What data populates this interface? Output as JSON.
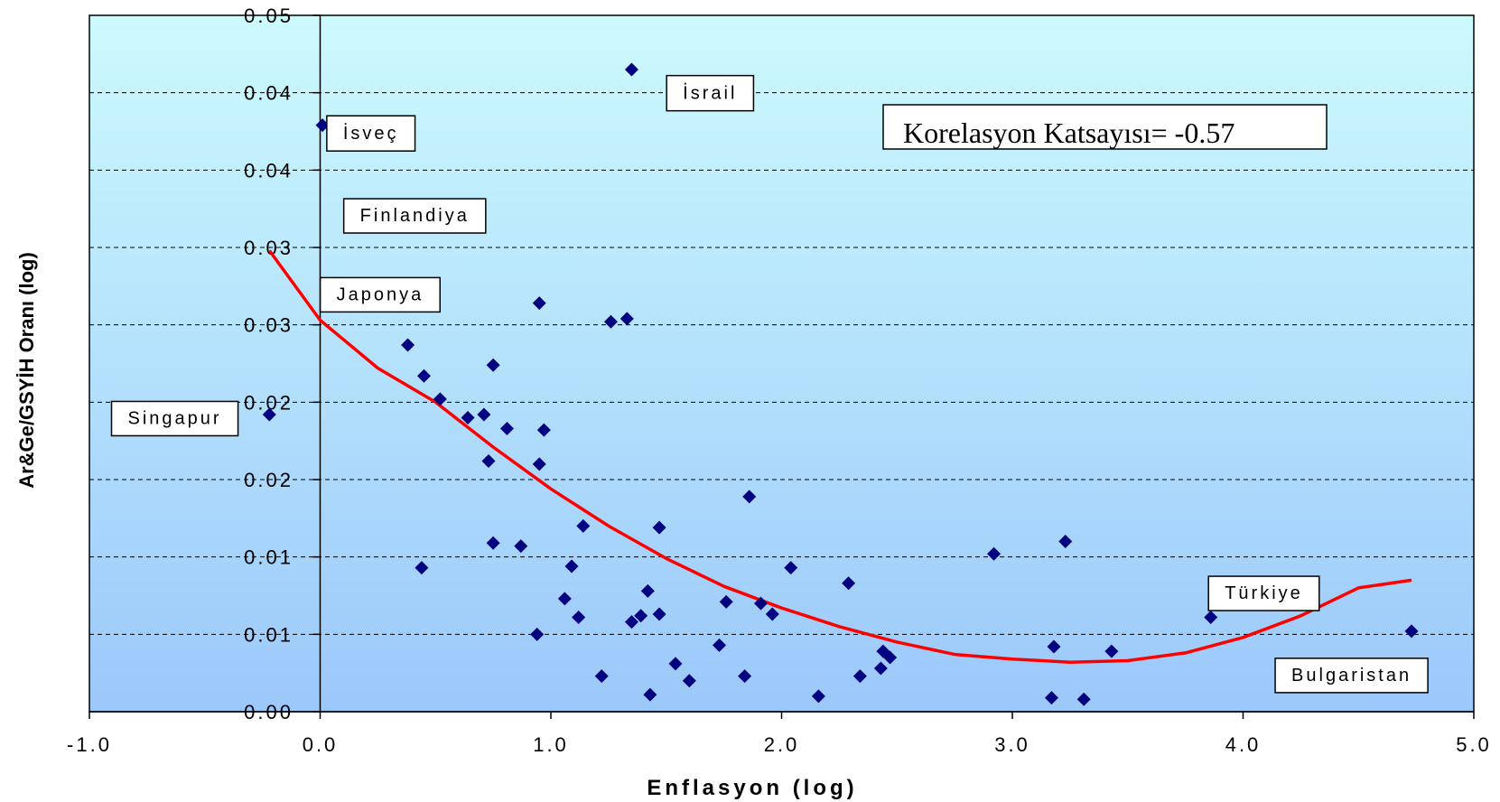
{
  "chart_data": {
    "type": "scatter",
    "xlabel": "Enflasyon (log)",
    "ylabel": "Ar&Ge/GSYİH Oranı (log)",
    "xlim": [
      -1.0,
      5.0
    ],
    "ylim": [
      0,
      0.045
    ],
    "grid": "horizontal dashed",
    "background_gradient": [
      "#cdfafd",
      "#9bc8fa"
    ],
    "x_ticks": [
      {
        "v": -1.0,
        "label": "-1.0"
      },
      {
        "v": 0.0,
        "label": "0.0"
      },
      {
        "v": 1.0,
        "label": "1.0"
      },
      {
        "v": 2.0,
        "label": "2.0"
      },
      {
        "v": 3.0,
        "label": "3.0"
      },
      {
        "v": 4.0,
        "label": "4.0"
      },
      {
        "v": 5.0,
        "label": "5.0"
      }
    ],
    "y_ticks": [
      {
        "v": 0.0,
        "label": "0.00"
      },
      {
        "v": 0.005,
        "label": "0.01"
      },
      {
        "v": 0.01,
        "label": "0.01"
      },
      {
        "v": 0.015,
        "label": "0.02"
      },
      {
        "v": 0.02,
        "label": "0.02"
      },
      {
        "v": 0.025,
        "label": "0.03"
      },
      {
        "v": 0.03,
        "label": "0.03"
      },
      {
        "v": 0.035,
        "label": "0.04"
      },
      {
        "v": 0.04,
        "label": "0.04"
      },
      {
        "v": 0.045,
        "label": "0.05"
      }
    ],
    "points": [
      [
        1.35,
        0.0415
      ],
      [
        0.01,
        0.0379
      ],
      [
        -0.22,
        0.0192
      ],
      [
        0.95,
        0.0264
      ],
      [
        1.26,
        0.0252
      ],
      [
        1.33,
        0.0254
      ],
      [
        0.38,
        0.0237
      ],
      [
        0.45,
        0.0217
      ],
      [
        0.75,
        0.0224
      ],
      [
        0.52,
        0.0202
      ],
      [
        0.64,
        0.019
      ],
      [
        0.71,
        0.0192
      ],
      [
        0.81,
        0.0183
      ],
      [
        0.97,
        0.0182
      ],
      [
        0.73,
        0.0162
      ],
      [
        0.95,
        0.016
      ],
      [
        1.86,
        0.0139
      ],
      [
        1.14,
        0.012
      ],
      [
        1.47,
        0.0119
      ],
      [
        0.75,
        0.0109
      ],
      [
        0.87,
        0.0107
      ],
      [
        1.09,
        0.0094
      ],
      [
        0.44,
        0.0093
      ],
      [
        2.04,
        0.0093
      ],
      [
        2.29,
        0.0083
      ],
      [
        1.42,
        0.0078
      ],
      [
        1.06,
        0.0073
      ],
      [
        1.12,
        0.0061
      ],
      [
        1.76,
        0.0071
      ],
      [
        1.91,
        0.007
      ],
      [
        1.39,
        0.0062
      ],
      [
        1.47,
        0.0063
      ],
      [
        1.35,
        0.0058
      ],
      [
        1.96,
        0.0063
      ],
      [
        0.94,
        0.005
      ],
      [
        1.73,
        0.0043
      ],
      [
        2.44,
        0.0039
      ],
      [
        2.47,
        0.0035
      ],
      [
        2.43,
        0.0028
      ],
      [
        1.54,
        0.0031
      ],
      [
        1.22,
        0.0023
      ],
      [
        1.6,
        0.002
      ],
      [
        1.84,
        0.0023
      ],
      [
        2.34,
        0.0023
      ],
      [
        1.43,
        0.0011
      ],
      [
        2.16,
        0.001
      ],
      [
        2.92,
        0.0102
      ],
      [
        3.23,
        0.011
      ],
      [
        3.18,
        0.0042
      ],
      [
        3.43,
        0.0039
      ],
      [
        3.86,
        0.0061
      ],
      [
        4.73,
        0.0052
      ],
      [
        3.17,
        0.0009
      ],
      [
        3.31,
        0.0008
      ]
    ],
    "trend": [
      [
        -0.22,
        0.0298
      ],
      [
        0.0,
        0.0253
      ],
      [
        0.25,
        0.0222
      ],
      [
        0.5,
        0.02
      ],
      [
        0.75,
        0.0171
      ],
      [
        1.0,
        0.0144
      ],
      [
        1.25,
        0.012
      ],
      [
        1.5,
        0.0099
      ],
      [
        1.75,
        0.0081
      ],
      [
        2.0,
        0.0067
      ],
      [
        2.25,
        0.0055
      ],
      [
        2.5,
        0.0045
      ],
      [
        2.75,
        0.0037
      ],
      [
        3.0,
        0.0034
      ],
      [
        3.25,
        0.0032
      ],
      [
        3.5,
        0.0033
      ],
      [
        3.75,
        0.0038
      ],
      [
        4.0,
        0.0048
      ],
      [
        4.25,
        0.0062
      ],
      [
        4.5,
        0.008
      ],
      [
        4.73,
        0.0085
      ]
    ],
    "point_color": "#000080",
    "trend_color": "#ff0000",
    "country_labels": [
      {
        "text": "İsrail",
        "x": 1.69,
        "y": 0.04
      },
      {
        "text": "İsveç",
        "x": 0.22,
        "y": 0.0374
      },
      {
        "text": "Finlandiya",
        "x": 0.41,
        "y": 0.0321
      },
      {
        "text": "Japonya",
        "x": 0.26,
        "y": 0.027
      },
      {
        "text": "Singapur",
        "x": -0.63,
        "y": 0.019
      },
      {
        "text": "Türkiye",
        "x": 4.09,
        "y": 0.0077
      },
      {
        "text": "Bulgaristan",
        "x": 4.47,
        "y": 0.0024
      }
    ],
    "annotation": "Korelasyon Katsayısı= -0.57"
  }
}
